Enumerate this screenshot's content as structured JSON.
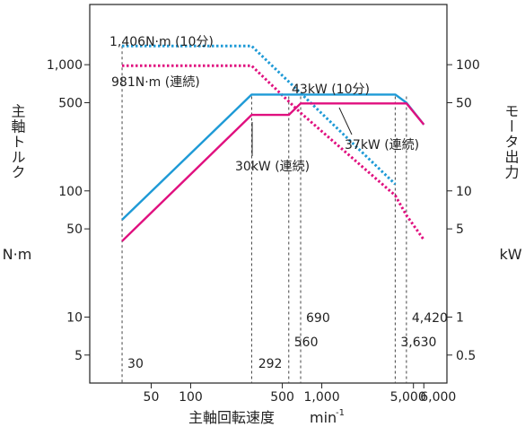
{
  "chart_data": {
    "type": "line",
    "title": "",
    "x_axis": {
      "label": "主軸回転速度",
      "unit_base": "min",
      "unit_sup": "-1",
      "scale": "log",
      "range": [
        17,
        9000
      ],
      "ticks": [
        {
          "value": 50,
          "label": "50"
        },
        {
          "value": 100,
          "label": "100"
        },
        {
          "value": 500,
          "label": "500"
        },
        {
          "value": 1000,
          "label": "1,000"
        },
        {
          "value": 5000,
          "label": "5,000"
        },
        {
          "value": 6000,
          "label": "6,000"
        }
      ]
    },
    "y_left": {
      "label": "主軸トルク",
      "unit": "N·m",
      "scale": "log",
      "range": [
        3,
        3000
      ],
      "ticks": [
        {
          "value": 5,
          "label": "5"
        },
        {
          "value": 10,
          "label": "10"
        },
        {
          "value": 50,
          "label": "50"
        },
        {
          "value": 100,
          "label": "100"
        },
        {
          "value": 500,
          "label": "500"
        },
        {
          "value": 1000,
          "label": "1,000"
        }
      ]
    },
    "y_right": {
      "label": "モータ出力",
      "unit": "kW",
      "scale": "log",
      "ticks": [
        {
          "value": 5,
          "label": "0.5"
        },
        {
          "value": 10,
          "label": "1"
        },
        {
          "value": 50,
          "label": "5"
        },
        {
          "value": 100,
          "label": "10"
        },
        {
          "value": 500,
          "label": "50"
        },
        {
          "value": 1000,
          "label": "100"
        }
      ]
    },
    "reference_speeds": [
      {
        "value": 30,
        "label": "30",
        "label_row": "low"
      },
      {
        "value": 292,
        "label": "292",
        "label_row": "low"
      },
      {
        "value": 560,
        "label": "560",
        "label_row": "mid"
      },
      {
        "value": 690,
        "label": "690",
        "label_row": "high"
      },
      {
        "value": 3630,
        "label": "3,630",
        "label_row": "mid"
      },
      {
        "value": 4420,
        "label": "4,420",
        "label_row": "high"
      }
    ],
    "series": [
      {
        "name": "1,406N·m (10分)",
        "quantity": "torque",
        "style": "dotted",
        "color": "#1e9ad6",
        "points": [
          [
            30,
            1406
          ],
          [
            292,
            1406
          ],
          [
            3630,
            113
          ]
        ]
      },
      {
        "name": "981N·m (連続)",
        "quantity": "torque",
        "style": "dotted",
        "color": "#e0107f",
        "points": [
          [
            30,
            981
          ],
          [
            292,
            981
          ],
          [
            690,
            415
          ],
          [
            3630,
            92
          ],
          [
            4420,
            64
          ],
          [
            6000,
            41
          ]
        ]
      },
      {
        "name": "43kW (10分)",
        "quantity": "power",
        "style": "solid",
        "color": "#1e9ad6",
        "points": [
          [
            30,
            59
          ],
          [
            292,
            580
          ],
          [
            3630,
            580
          ],
          [
            4420,
            500
          ],
          [
            6000,
            335
          ]
        ]
      },
      {
        "name": "30kW (連続)",
        "quantity": "power",
        "style": "solid",
        "color": "#e0107f",
        "points": [
          [
            30,
            40
          ],
          [
            292,
            400
          ],
          [
            560,
            400
          ],
          [
            690,
            493
          ],
          [
            4420,
            493
          ],
          [
            6000,
            335
          ]
        ]
      }
    ],
    "annotations": [
      {
        "text": "1,406N·m (10分)",
        "target": "1,406N·m (10分)"
      },
      {
        "text": "981N·m (連続)",
        "target": "981N·m (連続)"
      },
      {
        "text": "43kW (10分)",
        "target": "43kW (10分)"
      },
      {
        "text": "30kW (連続)",
        "target": "30kW (連続)"
      },
      {
        "text": "37kW (連続)",
        "target": "37kW (連続)"
      }
    ],
    "grid": false,
    "legend": "none"
  }
}
